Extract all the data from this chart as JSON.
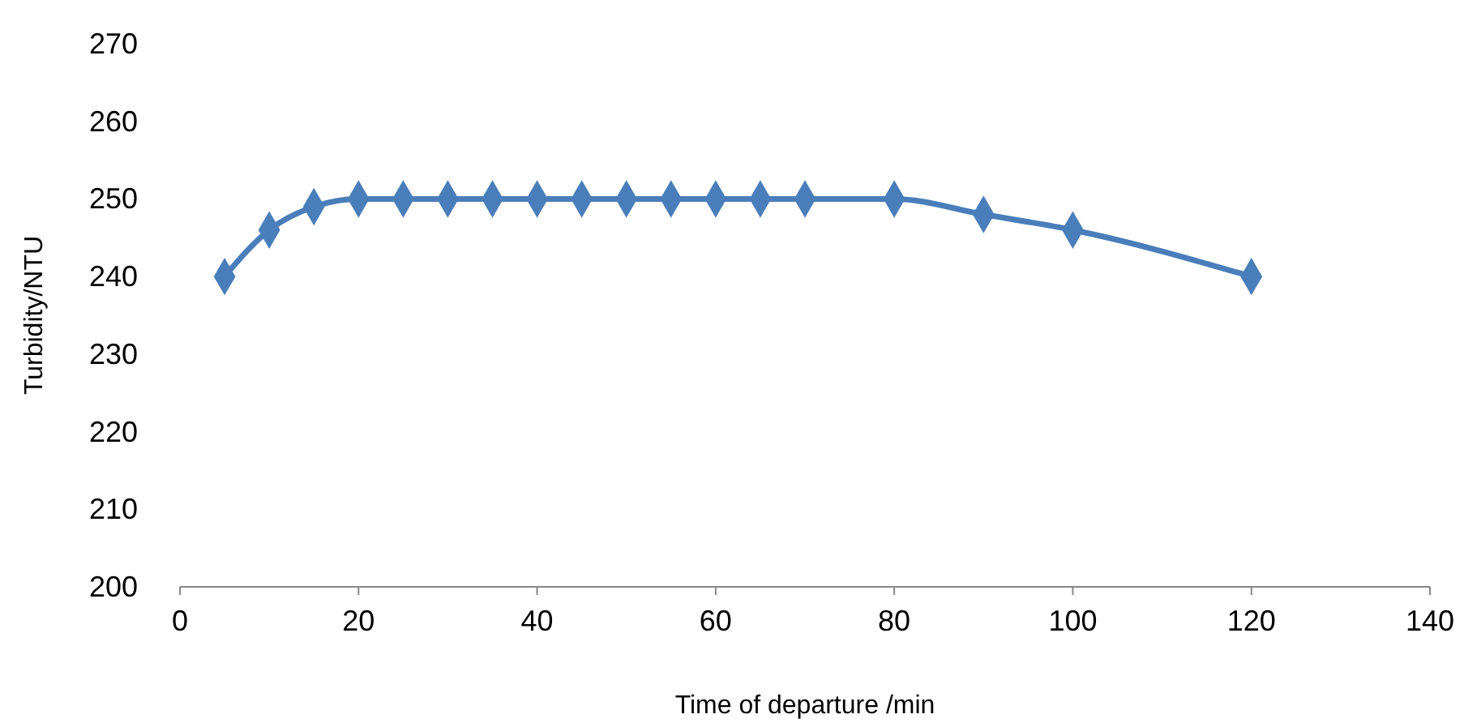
{
  "chart_data": {
    "type": "line",
    "xlabel": "Time of departure /min",
    "ylabel": "Turbidity/NTU",
    "x": [
      5,
      10,
      15,
      20,
      25,
      30,
      35,
      40,
      45,
      50,
      55,
      60,
      65,
      70,
      80,
      90,
      100,
      120
    ],
    "series": [
      {
        "color": "#4a7ebb",
        "values": [
          240,
          246,
          249,
          250,
          250,
          250,
          250,
          250,
          250,
          250,
          250,
          250,
          250,
          250,
          250,
          248,
          246,
          240
        ]
      }
    ],
    "xlim": [
      0,
      140
    ],
    "xticks": [
      0,
      20,
      40,
      60,
      80,
      100,
      120,
      140
    ],
    "ylim": [
      200,
      270
    ],
    "yticks": [
      200,
      210,
      220,
      230,
      240,
      250,
      260,
      270
    ],
    "marker": "diamond",
    "line_style": "solid",
    "grid": false
  }
}
